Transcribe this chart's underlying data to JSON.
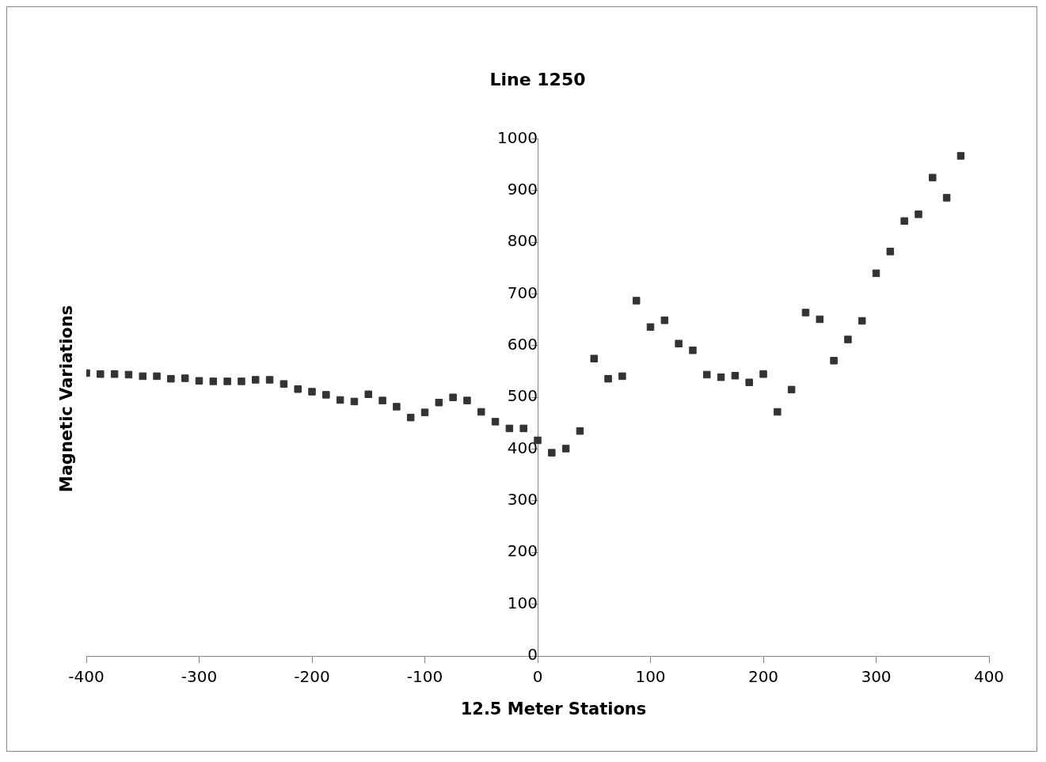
{
  "chart_data": {
    "type": "scatter",
    "title": "Line 1250",
    "xlabel": "12.5 Meter Stations",
    "ylabel": "Magnetic Variations",
    "x": [
      -400,
      -387.5,
      -375,
      -362.5,
      -350,
      -337.5,
      -325,
      -312.5,
      -300,
      -287.5,
      -275,
      -262.5,
      -250,
      -237.5,
      -225,
      -212.5,
      -200,
      -187.5,
      -175,
      -162.5,
      -150,
      -137.5,
      -125,
      -112.5,
      -100,
      -87.5,
      -75,
      -62.5,
      -50,
      -37.5,
      -25,
      -12.5,
      0,
      12.5,
      25,
      37.5,
      50,
      62.5,
      75,
      87.5,
      100,
      112.5,
      125,
      137.5,
      150,
      162.5,
      175,
      187.5,
      200,
      212.5,
      225,
      237.5,
      250,
      262.5,
      275,
      287.5,
      300,
      312.5,
      325,
      337.5,
      350,
      362.5,
      375
    ],
    "values": [
      547,
      545,
      545,
      544,
      541,
      541,
      536,
      537,
      532,
      531,
      531,
      531,
      534,
      534,
      526,
      516,
      511,
      505,
      495,
      492,
      506,
      494,
      482,
      461,
      471,
      490,
      500,
      494,
      472,
      453,
      440,
      440,
      417,
      393,
      401,
      435,
      575,
      536,
      541,
      687,
      636,
      649,
      604,
      591,
      544,
      539,
      542,
      529,
      545,
      472,
      515,
      664,
      651,
      571,
      612,
      648,
      740,
      782,
      841,
      854,
      925,
      886,
      967
    ],
    "color": "#333333",
    "marker": "square",
    "xlim": [
      -400,
      400
    ],
    "xticks": [
      -400,
      -300,
      -200,
      -100,
      0,
      100,
      200,
      300,
      400
    ],
    "ylim": [
      0,
      1000
    ],
    "yticks": [
      0,
      100,
      200,
      300,
      400,
      500,
      600,
      700,
      800,
      900,
      1000
    ],
    "grid": false,
    "legend": false
  }
}
